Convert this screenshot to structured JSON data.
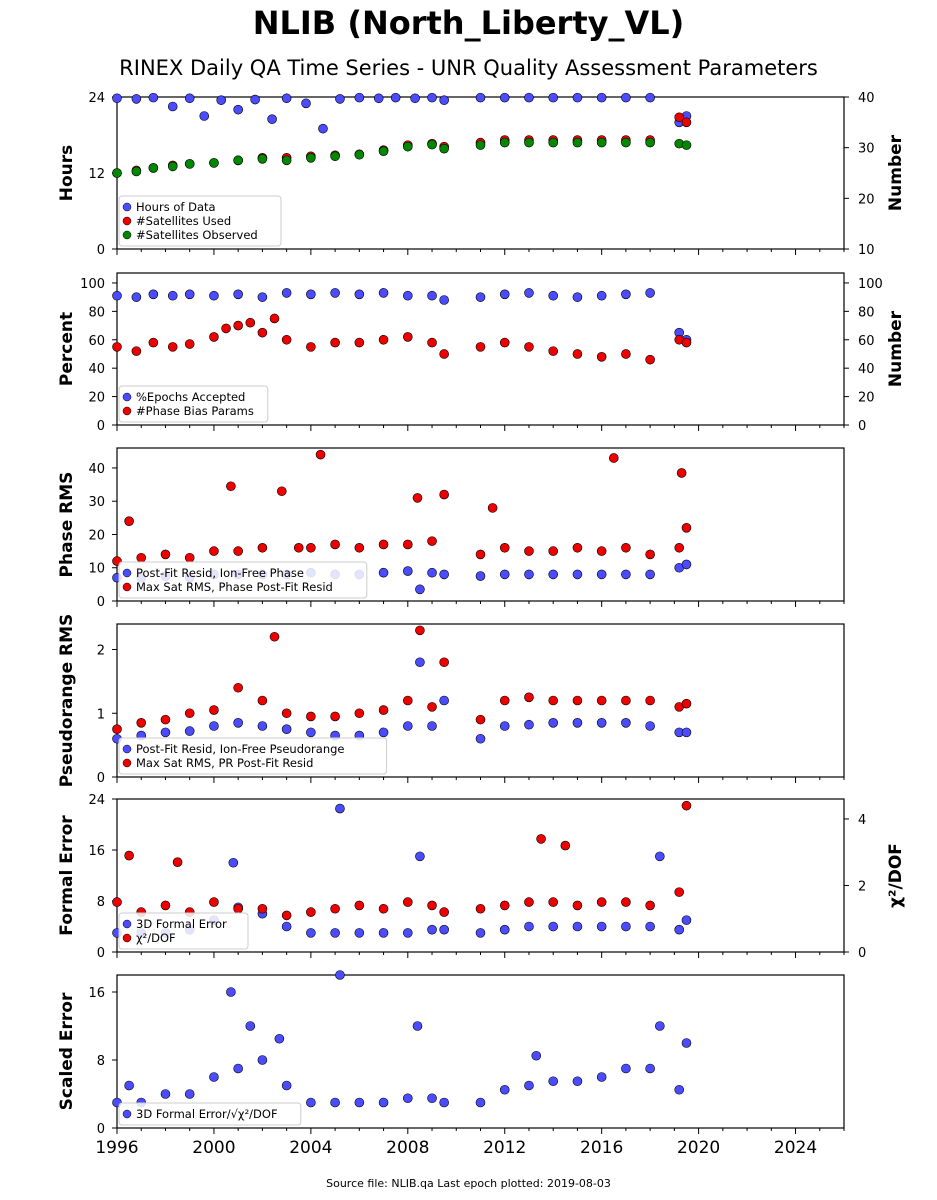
{
  "header": {
    "title": "NLIB (North_Liberty_VL)",
    "subtitle": "RINEX Daily QA Time Series - UNR Quality Assessment Parameters"
  },
  "footer": {
    "source": "Source file: NLIB.qa Last epoch plotted: 2019-08-03"
  },
  "colors": {
    "blue": "#4b4bff",
    "red": "#ee0000",
    "green": "#008800"
  },
  "chart_data": [
    {
      "type": "scatter",
      "ylabel": "Hours",
      "y2label": "Number",
      "ylim": [
        0,
        24
      ],
      "yticks": [
        0,
        12,
        24
      ],
      "y2lim": [
        10,
        40
      ],
      "y2ticks": [
        10,
        20,
        30,
        40
      ],
      "legend_position": "lower-left",
      "series": [
        {
          "name": "Hours of Data",
          "color": "blue",
          "axis": "left",
          "x": [
            1996.0,
            1996.8,
            1997.5,
            1998.3,
            1999.0,
            1999.6,
            2000.3,
            2001.0,
            2001.7,
            2002.4,
            2003.0,
            2003.8,
            2004.5,
            2005.2,
            2006.0,
            2006.8,
            2007.5,
            2008.3,
            2009.0,
            2009.5,
            2011.0,
            2012.0,
            2013.0,
            2014.0,
            2015.0,
            2016.0,
            2017.0,
            2018.0,
            2019.2,
            2019.5
          ],
          "y": [
            23.8,
            23.7,
            23.9,
            22.5,
            23.8,
            21.0,
            23.5,
            22.0,
            23.6,
            20.5,
            23.8,
            23.0,
            19.0,
            23.7,
            23.9,
            23.8,
            23.9,
            23.8,
            23.9,
            23.5,
            23.9,
            23.9,
            23.9,
            23.9,
            23.9,
            23.9,
            23.9,
            23.9,
            20.0,
            21.0
          ]
        },
        {
          "name": "#Satellites Used",
          "color": "red",
          "axis": "right",
          "x": [
            1996.0,
            1996.8,
            1997.5,
            1998.3,
            1999.0,
            2000.0,
            2001.0,
            2002.0,
            2003.0,
            2004.0,
            2005.0,
            2006.0,
            2007.0,
            2008.0,
            2009.0,
            2009.5,
            2011.0,
            2012.0,
            2013.0,
            2014.0,
            2015.0,
            2016.0,
            2017.0,
            2018.0,
            2019.2,
            2019.5
          ],
          "y": [
            25.0,
            25.5,
            26.0,
            26.5,
            26.8,
            27.0,
            27.5,
            28.0,
            28.0,
            28.3,
            28.5,
            28.7,
            29.5,
            30.5,
            30.8,
            30.2,
            31.0,
            31.5,
            31.5,
            31.5,
            31.5,
            31.5,
            31.5,
            31.5,
            36.0,
            35.0
          ]
        },
        {
          "name": "#Satellites Observed",
          "color": "green",
          "axis": "right",
          "x": [
            1996.0,
            1996.8,
            1997.5,
            1998.3,
            1999.0,
            2000.0,
            2001.0,
            2002.0,
            2003.0,
            2004.0,
            2005.0,
            2006.0,
            2007.0,
            2008.0,
            2009.0,
            2009.5,
            2011.0,
            2012.0,
            2013.0,
            2014.0,
            2015.0,
            2016.0,
            2017.0,
            2018.0,
            2019.2,
            2019.5
          ],
          "y": [
            25.0,
            25.3,
            26.0,
            26.3,
            26.8,
            27.0,
            27.5,
            27.8,
            27.5,
            28.0,
            28.3,
            28.6,
            29.3,
            30.2,
            30.6,
            29.8,
            30.5,
            31.0,
            31.0,
            31.0,
            31.0,
            31.0,
            31.0,
            31.0,
            30.8,
            30.5
          ]
        }
      ]
    },
    {
      "type": "scatter",
      "ylabel": "Percent",
      "y2label": "Number",
      "ylim": [
        0,
        107
      ],
      "yticks": [
        0,
        20,
        40,
        60,
        80,
        100
      ],
      "y2lim": [
        0,
        107
      ],
      "y2ticks": [
        0,
        20,
        40,
        60,
        80,
        100
      ],
      "legend_position": "lower-left",
      "series": [
        {
          "name": "%Epochs Accepted",
          "color": "blue",
          "axis": "left",
          "x": [
            1996.0,
            1996.8,
            1997.5,
            1998.3,
            1999.0,
            2000.0,
            2001.0,
            2002.0,
            2003.0,
            2004.0,
            2005.0,
            2006.0,
            2007.0,
            2008.0,
            2009.0,
            2009.5,
            2011.0,
            2012.0,
            2013.0,
            2014.0,
            2015.0,
            2016.0,
            2017.0,
            2018.0,
            2019.2,
            2019.5
          ],
          "y": [
            91,
            90,
            92,
            91,
            92,
            91,
            92,
            90,
            93,
            92,
            93,
            92,
            93,
            91,
            91,
            88,
            90,
            92,
            93,
            91,
            90,
            91,
            92,
            93,
            65,
            60
          ]
        },
        {
          "name": "#Phase Bias Params",
          "color": "red",
          "axis": "right",
          "x": [
            1996.0,
            1996.8,
            1997.5,
            1998.3,
            1999.0,
            2000.0,
            2000.5,
            2001.0,
            2001.5,
            2002.0,
            2002.5,
            2003.0,
            2004.0,
            2005.0,
            2006.0,
            2007.0,
            2008.0,
            2009.0,
            2009.5,
            2011.0,
            2012.0,
            2013.0,
            2014.0,
            2015.0,
            2016.0,
            2017.0,
            2018.0,
            2019.2,
            2019.5
          ],
          "y": [
            55,
            52,
            58,
            55,
            57,
            62,
            68,
            70,
            72,
            65,
            75,
            60,
            55,
            58,
            58,
            60,
            62,
            58,
            50,
            55,
            58,
            55,
            52,
            50,
            48,
            50,
            46,
            60,
            58
          ]
        }
      ]
    },
    {
      "type": "scatter",
      "ylabel": "Phase RMS",
      "ylim": [
        0,
        46
      ],
      "yticks": [
        0,
        10,
        20,
        30,
        40
      ],
      "legend_position": "lower-left",
      "series": [
        {
          "name": "Post-Fit Resid, Ion-Free Phase",
          "color": "blue",
          "x": [
            1996.0,
            1997.0,
            1998.0,
            1999.0,
            2000.0,
            2001.0,
            2002.0,
            2003.0,
            2004.0,
            2005.0,
            2006.0,
            2007.0,
            2008.0,
            2008.5,
            2009.0,
            2009.5,
            2011.0,
            2012.0,
            2013.0,
            2014.0,
            2015.0,
            2016.0,
            2017.0,
            2018.0,
            2019.2,
            2019.5
          ],
          "y": [
            7,
            7,
            7.5,
            7,
            8,
            8,
            8,
            8,
            8.5,
            8,
            8,
            8.5,
            9,
            3.5,
            8.5,
            8,
            7.5,
            8,
            8,
            8,
            8,
            8,
            8,
            8,
            10,
            11
          ]
        },
        {
          "name": "Max Sat RMS, Phase Post-Fit Resid",
          "color": "red",
          "x": [
            1996.0,
            1996.5,
            1997.0,
            1998.0,
            1999.0,
            2000.0,
            2000.7,
            2001.0,
            2002.0,
            2002.8,
            2003.5,
            2004.0,
            2004.4,
            2005.0,
            2006.0,
            2007.0,
            2008.0,
            2008.4,
            2009.0,
            2009.5,
            2011.0,
            2011.5,
            2012.0,
            2013.0,
            2014.0,
            2015.0,
            2016.0,
            2016.5,
            2017.0,
            2018.0,
            2019.2,
            2019.3,
            2019.5
          ],
          "y": [
            12,
            24,
            13,
            14,
            13,
            15,
            34.5,
            15,
            16,
            33,
            16,
            16,
            44,
            17,
            16,
            17,
            17,
            31,
            18,
            32,
            14,
            28,
            16,
            15,
            15,
            16,
            15,
            43,
            16,
            14,
            16,
            38.5,
            22
          ]
        }
      ]
    },
    {
      "type": "scatter",
      "ylabel": "Pseudorange RMS",
      "ylim": [
        0,
        2.4
      ],
      "yticks": [
        0,
        1,
        2
      ],
      "legend_position": "lower-left",
      "series": [
        {
          "name": "Post-Fit Resid, Ion-Free Pseudorange",
          "color": "blue",
          "x": [
            1996.0,
            1997.0,
            1998.0,
            1999.0,
            2000.0,
            2001.0,
            2002.0,
            2003.0,
            2004.0,
            2005.0,
            2006.0,
            2007.0,
            2008.0,
            2008.5,
            2009.0,
            2009.5,
            2011.0,
            2012.0,
            2013.0,
            2014.0,
            2015.0,
            2016.0,
            2017.0,
            2018.0,
            2019.2,
            2019.5
          ],
          "y": [
            0.6,
            0.65,
            0.7,
            0.72,
            0.8,
            0.85,
            0.8,
            0.75,
            0.7,
            0.65,
            0.65,
            0.7,
            0.8,
            1.8,
            0.8,
            1.2,
            0.6,
            0.8,
            0.82,
            0.85,
            0.85,
            0.85,
            0.85,
            0.8,
            0.7,
            0.7
          ]
        },
        {
          "name": "Max Sat RMS, PR Post-Fit Resid",
          "color": "red",
          "x": [
            1996.0,
            1997.0,
            1998.0,
            1999.0,
            2000.0,
            2001.0,
            2002.0,
            2002.5,
            2003.0,
            2004.0,
            2005.0,
            2006.0,
            2007.0,
            2008.0,
            2008.5,
            2009.0,
            2009.5,
            2011.0,
            2012.0,
            2013.0,
            2014.0,
            2015.0,
            2016.0,
            2017.0,
            2018.0,
            2019.2,
            2019.5
          ],
          "y": [
            0.75,
            0.85,
            0.9,
            1.0,
            1.05,
            1.4,
            1.2,
            2.2,
            1.0,
            0.95,
            0.95,
            1.0,
            1.05,
            1.2,
            2.3,
            1.1,
            1.8,
            0.9,
            1.2,
            1.25,
            1.2,
            1.2,
            1.2,
            1.2,
            1.2,
            1.1,
            1.15
          ]
        }
      ]
    },
    {
      "type": "scatter",
      "ylabel": "Formal Error",
      "y2label": "χ²/DOF",
      "ylim": [
        0,
        24
      ],
      "yticks": [
        0,
        8,
        16,
        24
      ],
      "y2lim": [
        0,
        4.6
      ],
      "y2ticks": [
        0,
        2,
        4
      ],
      "legend_position": "lower-left",
      "series": [
        {
          "name": "3D Formal Error",
          "color": "blue",
          "axis": "left",
          "x": [
            1996.0,
            1997.0,
            1998.0,
            1999.0,
            2000.0,
            2000.8,
            2001.0,
            2002.0,
            2003.0,
            2004.0,
            2005.0,
            2005.2,
            2006.0,
            2007.0,
            2008.0,
            2008.5,
            2009.0,
            2009.5,
            2011.0,
            2012.0,
            2013.0,
            2014.0,
            2015.0,
            2016.0,
            2017.0,
            2018.0,
            2018.4,
            2019.2,
            2019.5
          ],
          "y": [
            3,
            3,
            3,
            3.5,
            5,
            14,
            7,
            6,
            4,
            3,
            3,
            22.5,
            3,
            3,
            3,
            15,
            3.5,
            3.5,
            3,
            3.5,
            4,
            4,
            4,
            4,
            4,
            4,
            15,
            3.5,
            5
          ]
        },
        {
          "name": "χ²/DOF",
          "color": "red",
          "axis": "right",
          "x": [
            1996.0,
            1996.5,
            1997.0,
            1998.0,
            1998.5,
            1999.0,
            2000.0,
            2001.0,
            2002.0,
            2003.0,
            2004.0,
            2005.0,
            2006.0,
            2007.0,
            2008.0,
            2009.0,
            2009.5,
            2011.0,
            2012.0,
            2013.0,
            2013.5,
            2014.0,
            2014.5,
            2015.0,
            2016.0,
            2017.0,
            2018.0,
            2019.2,
            2019.5
          ],
          "y": [
            1.5,
            2.9,
            1.2,
            1.4,
            2.7,
            1.2,
            1.5,
            1.3,
            1.3,
            1.1,
            1.2,
            1.3,
            1.4,
            1.3,
            1.5,
            1.4,
            1.2,
            1.3,
            1.4,
            1.5,
            3.4,
            1.5,
            3.2,
            1.4,
            1.5,
            1.5,
            1.4,
            1.8,
            4.4
          ]
        }
      ]
    },
    {
      "type": "scatter",
      "ylabel": "Scaled Error",
      "ylim": [
        0,
        18
      ],
      "yticks": [
        0,
        8,
        16
      ],
      "xlim": [
        1996,
        2026
      ],
      "xticks": [
        1996,
        2000,
        2004,
        2008,
        2012,
        2016,
        2020,
        2024
      ],
      "legend_position": "lower-left",
      "series": [
        {
          "name": "3D Formal Error/√χ²/DOF",
          "color": "blue",
          "x": [
            1996.0,
            1996.5,
            1997.0,
            1998.0,
            1999.0,
            2000.0,
            2000.7,
            2001.0,
            2001.5,
            2002.0,
            2002.7,
            2003.0,
            2004.0,
            2005.0,
            2005.2,
            2006.0,
            2007.0,
            2008.0,
            2008.4,
            2009.0,
            2009.5,
            2011.0,
            2012.0,
            2013.0,
            2013.3,
            2014.0,
            2015.0,
            2016.0,
            2017.0,
            2018.0,
            2018.4,
            2019.2,
            2019.5
          ],
          "y": [
            3,
            5,
            3,
            4,
            4,
            6,
            16,
            7,
            12,
            8,
            10.5,
            5,
            3,
            3,
            18,
            3,
            3,
            3.5,
            12,
            3.5,
            3,
            3,
            4.5,
            5,
            8.5,
            5.5,
            5.5,
            6,
            7,
            7,
            12,
            4.5,
            10
          ]
        }
      ]
    }
  ]
}
